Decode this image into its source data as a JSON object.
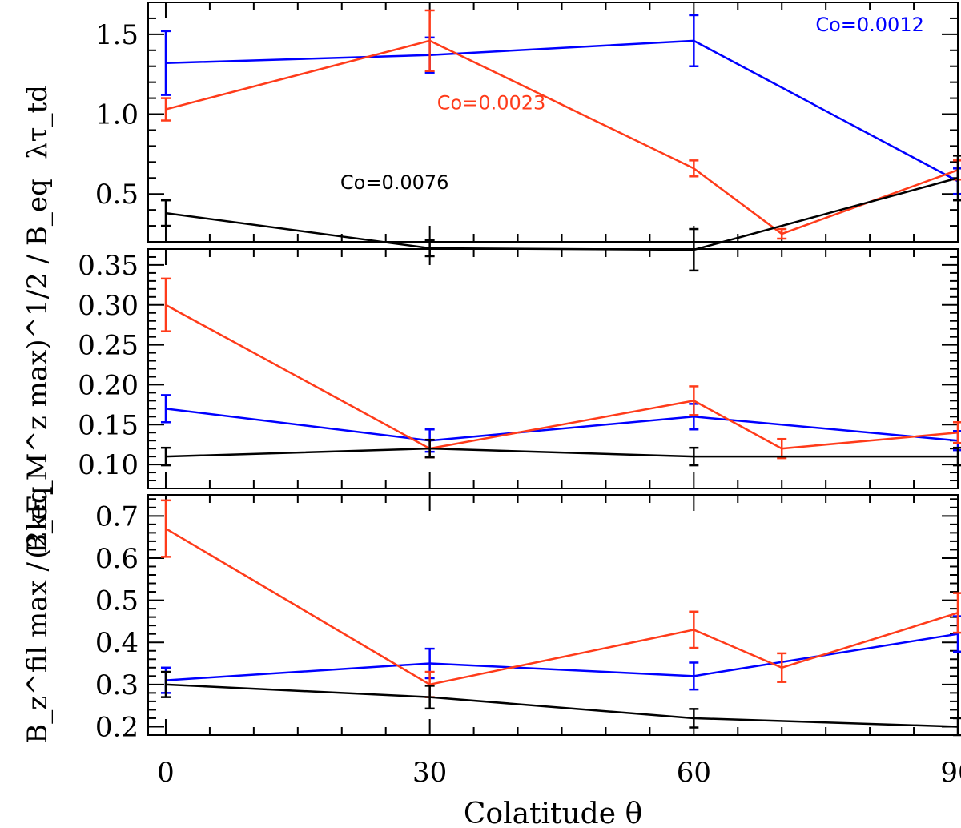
{
  "chart_data": [
    {
      "type": "line",
      "panel": "top",
      "ylabel": "λτ_td",
      "ylim": [
        0.2,
        1.7
      ],
      "yticks": [
        0.5,
        1.0,
        1.5
      ],
      "ytick_labels": [
        "0.5",
        "1.0",
        "1.5"
      ],
      "xlim": [
        -2,
        90
      ],
      "series": [
        {
          "color": "#0000ff",
          "x": [
            0,
            30,
            60,
            90
          ],
          "y": [
            1.32,
            1.37,
            1.46,
            0.58
          ],
          "err": [
            0.2,
            0.11,
            0.16,
            0.08
          ]
        },
        {
          "color": "#ff3b1a",
          "x": [
            0,
            30,
            60,
            70,
            90
          ],
          "y": [
            1.03,
            1.46,
            0.66,
            0.25,
            0.65
          ],
          "err": [
            0.07,
            0.19,
            0.05,
            0.03,
            0.06
          ]
        },
        {
          "color": "#000000",
          "x": [
            0,
            30,
            60,
            90
          ],
          "y": [
            0.38,
            0.16,
            0.15,
            0.6
          ],
          "err": [
            0.08,
            0.05,
            0.13,
            0.14
          ]
        }
      ],
      "annotations": [
        {
          "text": "Co=0.0012",
          "color": "#0000ff",
          "x": 80,
          "y": 1.52
        },
        {
          "text": "Co=0.0023",
          "color": "#ff3b1a",
          "x": 37,
          "y": 1.03
        },
        {
          "text": "Co=0.0076",
          "color": "#000000",
          "x": 26,
          "y": 0.53
        }
      ]
    },
    {
      "type": "line",
      "panel": "middle",
      "ylabel": "(2kE_M^z max)^1/2 / B_eq",
      "ylim": [
        0.07,
        0.37
      ],
      "yticks": [
        0.1,
        0.15,
        0.2,
        0.25,
        0.3,
        0.35
      ],
      "ytick_labels": [
        "0.10",
        "0.15",
        "0.20",
        "0.25",
        "0.30",
        "0.35"
      ],
      "xlim": [
        -2,
        90
      ],
      "series": [
        {
          "color": "#0000ff",
          "x": [
            0,
            30,
            60,
            90
          ],
          "y": [
            0.17,
            0.13,
            0.16,
            0.13
          ],
          "err": [
            0.017,
            0.014,
            0.016,
            0.012
          ]
        },
        {
          "color": "#ff3b1a",
          "x": [
            0,
            30,
            60,
            70,
            90
          ],
          "y": [
            0.3,
            0.12,
            0.18,
            0.12,
            0.14
          ],
          "err": [
            0.033,
            0.011,
            0.018,
            0.012,
            0.013
          ]
        },
        {
          "color": "#000000",
          "x": [
            0,
            30,
            60,
            90
          ],
          "y": [
            0.11,
            0.12,
            0.11,
            0.11
          ],
          "err": [
            0.011,
            0.011,
            0.011,
            0.011
          ]
        }
      ]
    },
    {
      "type": "line",
      "panel": "bottom",
      "ylabel": "B_z^fil max / B_eq",
      "ylim": [
        0.18,
        0.75
      ],
      "yticks": [
        0.2,
        0.3,
        0.4,
        0.5,
        0.6,
        0.7
      ],
      "ytick_labels": [
        "0.2",
        "0.3",
        "0.4",
        "0.5",
        "0.6",
        "0.7"
      ],
      "xlim": [
        -2,
        90
      ],
      "xticks": [
        0,
        30,
        60,
        90
      ],
      "xtick_labels": [
        "0",
        "30",
        "60",
        "90"
      ],
      "xlabel": "Colatitude θ",
      "series": [
        {
          "color": "#0000ff",
          "x": [
            0,
            30,
            60,
            90
          ],
          "y": [
            0.31,
            0.35,
            0.32,
            0.42
          ],
          "err": [
            0.03,
            0.035,
            0.032,
            0.042
          ]
        },
        {
          "color": "#ff3b1a",
          "x": [
            0,
            30,
            60,
            70,
            90
          ],
          "y": [
            0.67,
            0.3,
            0.43,
            0.34,
            0.47
          ],
          "err": [
            0.067,
            0.03,
            0.043,
            0.034,
            0.047
          ]
        },
        {
          "color": "#000000",
          "x": [
            0,
            30,
            60,
            90
          ],
          "y": [
            0.3,
            0.27,
            0.22,
            0.2
          ],
          "err": [
            0.03,
            0.027,
            0.022,
            0.02
          ]
        }
      ]
    }
  ]
}
